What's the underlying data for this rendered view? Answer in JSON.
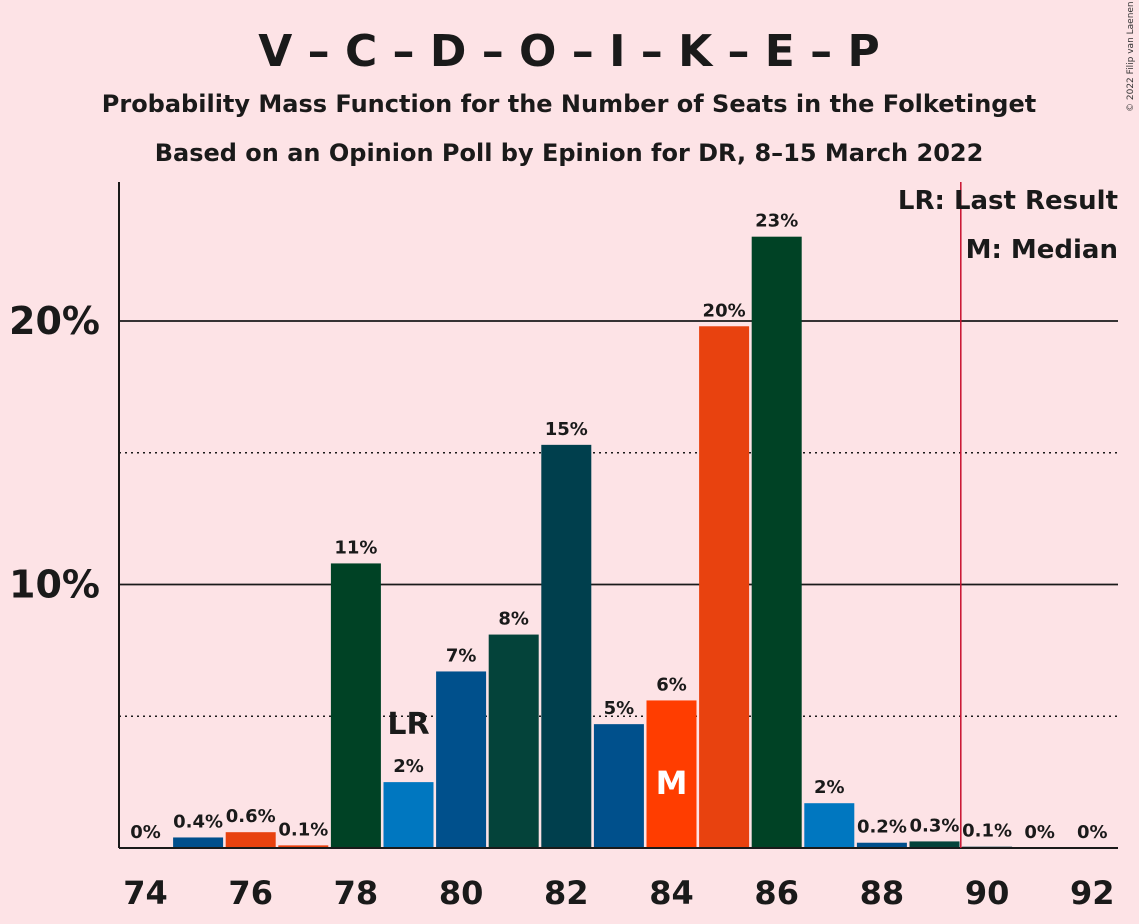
{
  "header": {
    "title": "V – C – D – O – I – K – E – P",
    "subtitle1": "Probability Mass Function for the Number of Seats in the Folketinget",
    "subtitle2": "Based on an Opinion Poll by Epinion for DR, 8–15 March 2022",
    "copyright": "© 2022 Filip van Laenen"
  },
  "legend": {
    "last_result": "LR: Last Result",
    "median": "M: Median"
  },
  "markers": {
    "last_result_label": "LR",
    "last_result_seat": 79,
    "median_label": "M",
    "median_seat": 84,
    "majority_line_seat": 89.5,
    "majority_line_color": "#c8102e"
  },
  "chart_data": {
    "type": "bar",
    "title": "V – C – D – O – I – K – E – P",
    "xlabel": "",
    "ylabel": "",
    "ylim": [
      0,
      25
    ],
    "xlim": [
      74,
      92
    ],
    "x_tick_labels": [
      "74",
      "76",
      "78",
      "80",
      "82",
      "84",
      "86",
      "88",
      "90",
      "92"
    ],
    "y_tick_labels": [
      {
        "value": 10,
        "label": "10%"
      },
      {
        "value": 20,
        "label": "20%"
      }
    ],
    "gridlines_solid": [
      10,
      20
    ],
    "gridlines_dotted": [
      5,
      15
    ],
    "grid": true,
    "legend_position": "top-right",
    "bars": [
      {
        "seats": 74,
        "value": 0.0,
        "label": "0%",
        "color": "#004f8c"
      },
      {
        "seats": 75,
        "value": 0.4,
        "label": "0.4%",
        "color": "#004f8c"
      },
      {
        "seats": 76,
        "value": 0.6,
        "label": "0.6%",
        "color": "#e8420f"
      },
      {
        "seats": 77,
        "value": 0.1,
        "label": "0.1%",
        "color": "#e8420f"
      },
      {
        "seats": 78,
        "value": 10.8,
        "label": "11%",
        "color": "#004225"
      },
      {
        "seats": 79,
        "value": 2.5,
        "label": "2%",
        "color": "#0077c0"
      },
      {
        "seats": 80,
        "value": 6.7,
        "label": "7%",
        "color": "#00508c"
      },
      {
        "seats": 81,
        "value": 8.1,
        "label": "8%",
        "color": "#04433a"
      },
      {
        "seats": 82,
        "value": 15.3,
        "label": "15%",
        "color": "#003f4d"
      },
      {
        "seats": 83,
        "value": 4.7,
        "label": "5%",
        "color": "#00508c"
      },
      {
        "seats": 84,
        "value": 5.6,
        "label": "6%",
        "color": "#ff3d00"
      },
      {
        "seats": 85,
        "value": 19.8,
        "label": "20%",
        "color": "#e8420f"
      },
      {
        "seats": 86,
        "value": 23.2,
        "label": "23%",
        "color": "#004225"
      },
      {
        "seats": 87,
        "value": 1.7,
        "label": "2%",
        "color": "#0077c0"
      },
      {
        "seats": 88,
        "value": 0.2,
        "label": "0.2%",
        "color": "#00508c"
      },
      {
        "seats": 89,
        "value": 0.25,
        "label": "0.3%",
        "color": "#04433a"
      },
      {
        "seats": 90,
        "value": 0.05,
        "label": "0.1%",
        "color": "#003f4d"
      },
      {
        "seats": 91,
        "value": 0.0,
        "label": "0%",
        "color": "#00508c"
      },
      {
        "seats": 92,
        "value": 0.0,
        "label": "0%",
        "color": "#00508c"
      }
    ]
  }
}
